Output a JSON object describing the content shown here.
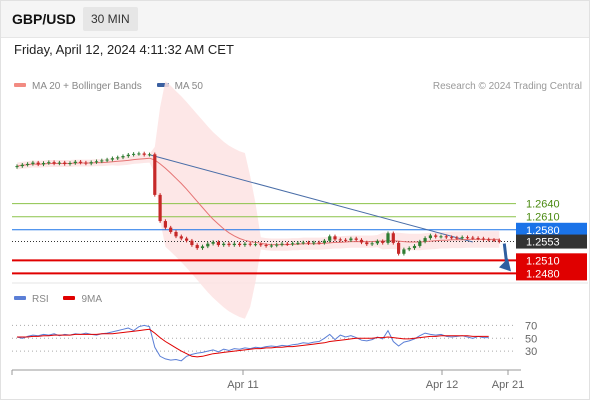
{
  "header": {
    "symbol": "GBP/USD",
    "timeframe": "30 MIN",
    "datetime": "Friday, April 12, 2024 4:11:32 AM CET"
  },
  "legend": {
    "items": [
      {
        "label": "MA 20 + Bollinger Bands",
        "color": "#f28b82"
      },
      {
        "label": "MA 50",
        "color": "#3a5fa0"
      }
    ],
    "credit": "Research © 2024 Trading Central"
  },
  "rsi_legend": {
    "items": [
      {
        "label": "RSI",
        "color": "#5b7fd6"
      },
      {
        "label": "9MA",
        "color": "#e00000"
      }
    ]
  },
  "colors": {
    "bull": "#2e7d32",
    "bear": "#c62828",
    "ma20": "#e57373",
    "band_fill": "#fde3e3",
    "ma50": "#4a6ea8",
    "support": "#e00000",
    "resistance": "#8bc34a",
    "pivot": "#1a73e8",
    "current": "#333333",
    "arrow": "#2f5fa0",
    "rsi": "#5b7fd6",
    "rsi_ma": "#e00000"
  },
  "chart_data": {
    "type": "candlestick",
    "instrument": "GBP/USD",
    "timeframe": "30 MIN",
    "x_tick_labels": [
      "Apr 11",
      "Apr 12",
      "Apr 21"
    ],
    "price_range": [
      1.2458,
      1.2795
    ],
    "current_price": 1.2553,
    "levels": [
      {
        "value": 1.264,
        "label": "1.2640",
        "kind": "resistance"
      },
      {
        "value": 1.261,
        "label": "1.2610",
        "kind": "resistance"
      },
      {
        "value": 1.258,
        "label": "1.2580",
        "kind": "pivot"
      },
      {
        "value": 1.2553,
        "label": "1.2553",
        "kind": "current"
      },
      {
        "value": 1.251,
        "label": "1.2510",
        "kind": "support"
      },
      {
        "value": 1.248,
        "label": "1.2480",
        "kind": "support"
      }
    ],
    "closes": [
      1.2726,
      1.2729,
      1.2731,
      1.2734,
      1.273,
      1.2733,
      1.2735,
      1.2732,
      1.2734,
      1.2731,
      1.2733,
      1.2736,
      1.2734,
      1.2732,
      1.2735,
      1.2737,
      1.2739,
      1.2741,
      1.2744,
      1.2746,
      1.2749,
      1.2752,
      1.2754,
      1.2755,
      1.2752,
      1.2753,
      1.266,
      1.26,
      1.2585,
      1.2575,
      1.2565,
      1.256,
      1.2555,
      1.2545,
      1.2538,
      1.2542,
      1.2548,
      1.2552,
      1.2545,
      1.2548,
      1.2545,
      1.2548,
      1.2545,
      1.2548,
      1.2546,
      1.2547,
      1.2545,
      1.2543,
      1.2544,
      1.2546,
      1.2548,
      1.2547,
      1.2549,
      1.255,
      1.2551,
      1.2549,
      1.2551,
      1.255,
      1.2555,
      1.2565,
      1.2558,
      1.2557,
      1.2556,
      1.256,
      1.2557,
      1.2551,
      1.2547,
      1.2549,
      1.2554,
      1.255,
      1.2572,
      1.255,
      1.2525,
      1.2535,
      1.2538,
      1.2543,
      1.2553,
      1.2561,
      1.2567,
      1.2564,
      1.2565,
      1.2563,
      1.2562,
      1.2561,
      1.2563,
      1.2562,
      1.2561,
      1.256,
      1.2558,
      1.2557,
      1.2556,
      1.2553
    ],
    "ma20": [
      1.2726,
      1.2728,
      1.2729,
      1.2731,
      1.273,
      1.2731,
      1.2732,
      1.2732,
      1.2732,
      1.2732,
      1.2732,
      1.2733,
      1.2733,
      1.2733,
      1.2733,
      1.2734,
      1.2734,
      1.2735,
      1.2736,
      1.2737,
      1.2738,
      1.2739,
      1.2741,
      1.2742,
      1.2743,
      1.2744,
      1.274,
      1.2731,
      1.2721,
      1.271,
      1.2698,
      1.2686,
      1.2673,
      1.2659,
      1.2645,
      1.2631,
      1.2617,
      1.2604,
      1.2593,
      1.2582,
      1.2573,
      1.2566,
      1.256,
      1.2556,
      1.2553,
      1.2551,
      1.2549,
      1.2547,
      1.2546,
      1.2546,
      1.2546,
      1.2546,
      1.2547,
      1.2547,
      1.2548,
      1.2548,
      1.2548,
      1.2548,
      1.2549,
      1.255,
      1.2551,
      1.2551,
      1.2552,
      1.2553,
      1.2553,
      1.2553,
      1.2553,
      1.2553,
      1.2554,
      1.2554,
      1.2555,
      1.2555,
      1.2554,
      1.2553,
      1.2552,
      1.2552,
      1.2552,
      1.2553,
      1.2554,
      1.2555,
      1.2556,
      1.2556,
      1.2557,
      1.2557,
      1.2557,
      1.2558,
      1.2558,
      1.2558,
      1.2558,
      1.2558,
      1.2558,
      1.2558
    ],
    "ma50_start": {
      "index": 25,
      "value": 1.2752
    },
    "ma50_end": {
      "index": 86,
      "value": 1.2552
    },
    "rsi_axis": {
      "range": [
        10,
        80
      ],
      "ticks": [
        30,
        50,
        70
      ]
    },
    "rsi": [
      52,
      50,
      53,
      55,
      54,
      56,
      55,
      57,
      54,
      56,
      55,
      57,
      56,
      58,
      56,
      55,
      57,
      58,
      60,
      62,
      64,
      66,
      62,
      68,
      70,
      68,
      36,
      22,
      18,
      16,
      17,
      15,
      22,
      25,
      27,
      28,
      30,
      32,
      29,
      33,
      31,
      34,
      33,
      35,
      34,
      36,
      35,
      37,
      38,
      37,
      39,
      38,
      40,
      41,
      43,
      42,
      44,
      45,
      50,
      56,
      48,
      55,
      52,
      54,
      51,
      47,
      46,
      48,
      52,
      49,
      62,
      45,
      38,
      44,
      46,
      49,
      54,
      58,
      56,
      55,
      56,
      53,
      52,
      53,
      54,
      52,
      50,
      53,
      51,
      51
    ],
    "rsi_ma": [
      52,
      52,
      52,
      53,
      53,
      54,
      54,
      55,
      55,
      55,
      55,
      56,
      56,
      56,
      56,
      56,
      57,
      57,
      57,
      58,
      59,
      60,
      61,
      62,
      63,
      64,
      58,
      51,
      45,
      40,
      35,
      30,
      26,
      22,
      21,
      22,
      24,
      26,
      27,
      28,
      29,
      30,
      31,
      32,
      33,
      34,
      34,
      35,
      35,
      36,
      36,
      37,
      37,
      38,
      39,
      40,
      41,
      42,
      43,
      45,
      46,
      47,
      48,
      49,
      50,
      50,
      50,
      50,
      51,
      51,
      52,
      51,
      50,
      49,
      49,
      50,
      51,
      52,
      53,
      53,
      54,
      54,
      54,
      54,
      54,
      54,
      53,
      53,
      53,
      53
    ]
  }
}
